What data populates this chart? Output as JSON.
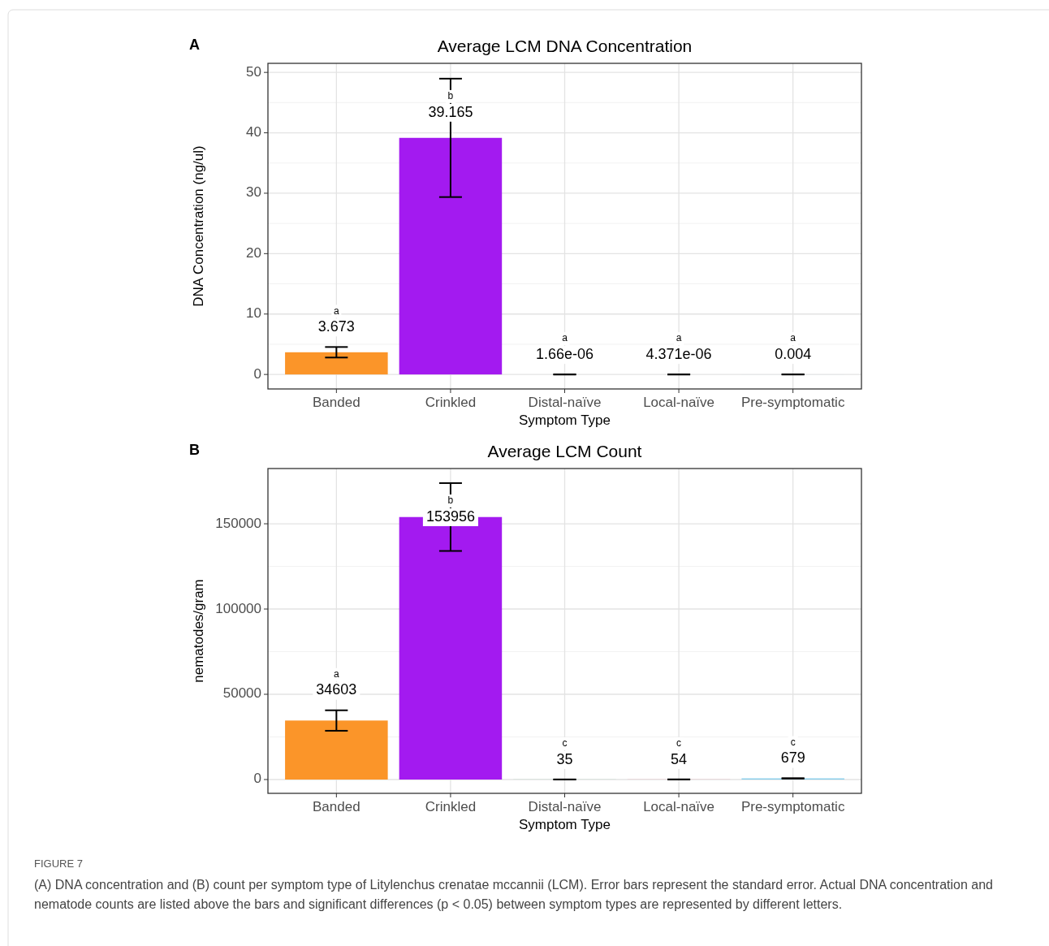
{
  "chart_data": [
    {
      "type": "bar",
      "title": "Average LCM DNA Concentration",
      "xlabel": "Symptom Type",
      "ylabel": "DNA Concentration (ng/ul)",
      "categories": [
        "Banded",
        "Crinkled",
        "Distal-naïve",
        "Local-naïve",
        "Pre-symptomatic"
      ],
      "values": [
        3.673,
        39.165,
        1.66e-06,
        4.371e-06,
        0.004
      ],
      "colors": [
        "#fb9529",
        "#a31af0",
        "#3cb371",
        "#e9627a",
        "#87ceeb"
      ],
      "errors": [
        0.87,
        9.8,
        0,
        0,
        0
      ],
      "value_labels": [
        "3.673",
        "39.165",
        "1.66e-06",
        "4.371e-06",
        "0.004"
      ],
      "annotations": [
        "A",
        "a",
        "b",
        "a",
        "a",
        "a"
      ],
      "ylim": [
        -2.4,
        51.5
      ],
      "yticks": [
        0,
        10,
        20,
        30,
        40,
        50
      ],
      "grid": true
    },
    {
      "type": "bar",
      "title": "Average LCM Count",
      "xlabel": "Symptom Type",
      "ylabel": "nematodes/gram",
      "categories": [
        "Banded",
        "Crinkled",
        "Distal-naïve",
        "Local-naïve",
        "Pre-symptomatic"
      ],
      "values": [
        34603,
        153956,
        35,
        54,
        679
      ],
      "colors": [
        "#fb9529",
        "#a31af0",
        "#3cb371",
        "#e9627a",
        "#87ceeb"
      ],
      "errors": [
        6000,
        19900,
        0,
        0,
        0
      ],
      "value_labels": [
        "34603",
        "153956",
        "35",
        "54",
        "679"
      ],
      "annotations": [
        "B",
        "a",
        "b",
        "c",
        "c",
        "c",
        "FIGURE 7",
        "(A) DNA concentration and (B) count per symptom type of Litylenchus crenatae mccannii (LCM). Error bars represent the standard error. Actual DNA concentration and nematode counts are listed above the bars and significant differences (p < 0.05) between symptom types are represented by different letters."
      ],
      "ylim": [
        -8100,
        182400
      ],
      "yticks": [
        0,
        50000,
        100000,
        150000
      ],
      "grid": true
    }
  ]
}
